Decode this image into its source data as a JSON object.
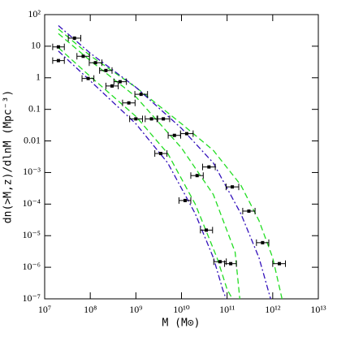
{
  "chart_data": {
    "type": "scatter",
    "x_label": "M (M⊙)",
    "y_label": "dn(>M,z)/dlnM (Mpc⁻³)",
    "log_x": true,
    "log_y": true,
    "xlim": [
      10000000.0,
      10000000000000.0
    ],
    "ylim": [
      1e-07,
      100
    ],
    "xticks": [
      {
        "value": 10000000.0,
        "label": "10⁷"
      },
      {
        "value": 100000000.0,
        "label": "10⁸"
      },
      {
        "value": 1000000000.0,
        "label": "10⁹"
      },
      {
        "value": 10000000000.0,
        "label": "10¹⁰"
      },
      {
        "value": 100000000000.0,
        "label": "10¹¹"
      },
      {
        "value": 1000000000000.0,
        "label": "10¹²"
      },
      {
        "value": 10000000000000.0,
        "label": "10¹³"
      }
    ],
    "yticks": [
      {
        "value": 1e-07,
        "label": "10⁻⁷"
      },
      {
        "value": 1e-06,
        "label": "10⁻⁶"
      },
      {
        "value": 1e-05,
        "label": "10⁻⁵"
      },
      {
        "value": 0.0001,
        "label": "10⁻⁴"
      },
      {
        "value": 0.001,
        "label": "10⁻³"
      },
      0.01,
      0.1,
      1,
      10,
      {
        "value": 100,
        "label": "10²"
      }
    ],
    "series": [
      {
        "kind": "line",
        "style": "dash",
        "color": "#22dd22",
        "x": [
          20000000.0,
          100000000.0,
          1000000000.0,
          10000000000.0,
          50000000000.0,
          200000000000.0,
          500000000000.0,
          1000000000000.0,
          1600000000000.0
        ],
        "values": [
          35,
          5,
          0.5,
          0.035,
          0.005,
          0.0004,
          3e-05,
          2e-06,
          1e-07
        ]
      },
      {
        "kind": "line",
        "style": "dashdot",
        "color": "#3311bb",
        "x": [
          20000000.0,
          100000000.0,
          1000000000.0,
          10000000000.0,
          50000000000.0,
          200000000000.0,
          500000000000.0,
          900000000000.0
        ],
        "values": [
          45,
          6,
          0.5,
          0.025,
          0.002,
          5e-05,
          2e-06,
          1e-07
        ]
      },
      {
        "kind": "line",
        "style": "dash",
        "color": "#22dd22",
        "x": [
          20000000.0,
          100000000.0,
          1000000000.0,
          10000000000.0,
          50000000000.0,
          150000000000.0,
          190000000000.0
        ],
        "values": [
          25,
          3.5,
          0.25,
          0.006,
          0.0002,
          3e-06,
          1e-07
        ]
      },
      {
        "kind": "line",
        "style": "dash",
        "color": "#22dd22",
        "x": [
          20000000.0,
          100000000.0,
          1000000000.0,
          5000000000.0,
          20000000000.0,
          60000000000.0,
          100000000000.0,
          130000000000.0
        ],
        "values": [
          9,
          1.1,
          0.06,
          0.004,
          0.0001,
          2e-06,
          2e-07,
          1e-07
        ]
      },
      {
        "kind": "line",
        "style": "dashdot",
        "color": "#3311bb",
        "x": [
          20000000.0,
          100000000.0,
          1000000000.0,
          5000000000.0,
          20000000000.0,
          50000000000.0,
          80000000000.0,
          95000000000.0
        ],
        "values": [
          7,
          0.8,
          0.035,
          0.002,
          5e-05,
          2e-06,
          2e-07,
          1e-07
        ]
      },
      {
        "kind": "points",
        "color": "#000000",
        "x": [
          45000000.0,
          130000000.0,
          450000000.0,
          1300000000.0,
          4000000000.0,
          13000000000.0,
          40000000000.0,
          130000000000.0,
          300000000000.0,
          600000000000.0,
          1400000000000.0
        ],
        "x_lower": [
          33000000.0,
          95000000.0,
          330000000.0,
          950000000.0,
          2900000000.0,
          9500000000.0,
          29000000000.0,
          95000000000.0,
          220000000000.0,
          440000000000.0,
          1000000000000.0
        ],
        "x_upper": [
          62000000.0,
          180000000.0,
          620000000.0,
          1800000000.0,
          5500000000.0,
          18000000000.0,
          55000000000.0,
          180000000000.0,
          410000000000.0,
          820000000000.0,
          1900000000000.0
        ],
        "values": [
          18,
          3,
          0.75,
          0.3,
          0.05,
          0.017,
          0.0015,
          0.00035,
          6e-05,
          6e-06,
          1.3e-06
        ]
      },
      {
        "kind": "points",
        "color": "#000000",
        "x": [
          20000000.0,
          70000000.0,
          220000000.0,
          700000000.0,
          2200000000.0,
          7000000000.0,
          22000000000.0,
          70000000000.0
        ],
        "x_lower": [
          15000000.0,
          51000000.0,
          160000000.0,
          510000000.0,
          1600000000.0,
          5100000000.0,
          16000000000.0,
          51000000000.0
        ],
        "x_upper": [
          27000000.0,
          96000000.0,
          300000000.0,
          960000000.0,
          3000000000.0,
          9600000000.0,
          30000000000.0,
          96000000000.0
        ],
        "values": [
          9.5,
          4.8,
          1.7,
          0.16,
          0.05,
          0.015,
          0.0008,
          1.5e-06
        ]
      },
      {
        "kind": "points",
        "color": "#000000",
        "x": [
          20000000.0,
          90000000.0,
          300000000.0,
          1000000000.0,
          3500000000.0,
          12000000000.0,
          35000000000.0,
          120000000000.0
        ],
        "x_lower": [
          15000000.0,
          66000000.0,
          220000000.0,
          730000000.0,
          2600000000.0,
          8800000000.0,
          26000000000.0,
          88000000000.0
        ],
        "x_upper": [
          27000000.0,
          120000000.0,
          410000000.0,
          1400000000.0,
          4800000000.0,
          16000000000.0,
          48000000000.0,
          160000000000.0
        ],
        "values": [
          3.5,
          0.95,
          0.55,
          0.05,
          0.004,
          0.00013,
          1.5e-05,
          1.3e-06
        ]
      }
    ]
  }
}
